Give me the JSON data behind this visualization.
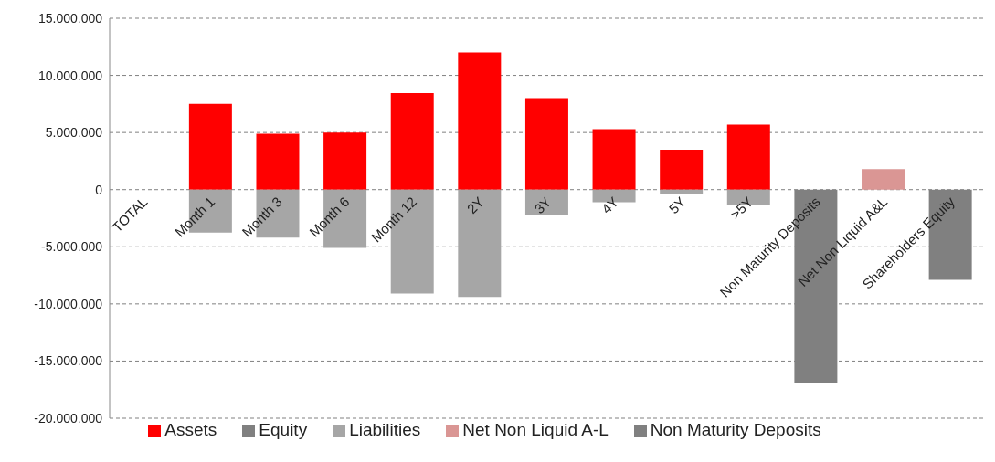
{
  "chart_data": {
    "type": "bar",
    "stacked": true,
    "categories": [
      "TOTAL",
      "Month 1",
      "Month 3",
      "Month 6",
      "Month 12",
      "2Y",
      "3Y",
      "4Y",
      "5Y",
      ">5Y",
      "Non Maturity Deposits",
      "Net Non Liquid A&L",
      "Shareholders Equity"
    ],
    "series": [
      {
        "name": "Assets",
        "color": "#ff0000",
        "values": [
          null,
          7500000,
          4900000,
          5000000,
          8450000,
          12000000,
          8000000,
          5300000,
          3500000,
          5700000,
          null,
          null,
          null
        ]
      },
      {
        "name": "Liabilities",
        "color": "#a6a6a6",
        "values": [
          null,
          -3750000,
          -4200000,
          -5100000,
          -9100000,
          -9400000,
          -2200000,
          -1100000,
          -400000,
          -1300000,
          null,
          null,
          null
        ]
      },
      {
        "name": "Net Non Liquid A-L",
        "color": "#da9694",
        "values": [
          null,
          null,
          null,
          null,
          null,
          null,
          null,
          null,
          null,
          null,
          null,
          1800000,
          null
        ]
      },
      {
        "name": "Non Maturity Deposits",
        "color": "#808080",
        "values": [
          null,
          null,
          null,
          null,
          null,
          null,
          null,
          null,
          null,
          null,
          -16900000,
          null,
          null
        ]
      },
      {
        "name": "Equity",
        "color": "#808080",
        "values": [
          null,
          null,
          null,
          null,
          null,
          null,
          null,
          null,
          null,
          null,
          null,
          null,
          -7900000
        ]
      }
    ],
    "ylim": [
      -20000000,
      15000000
    ],
    "yticks": [
      {
        "value": -20000000,
        "label": "-20.000.000"
      },
      {
        "value": -15000000,
        "label": "-15.000.000"
      },
      {
        "value": -10000000,
        "label": "-10.000.000"
      },
      {
        "value": -5000000,
        "label": "-5.000.000"
      },
      {
        "value": 0,
        "label": "0"
      },
      {
        "value": 5000000,
        "label": "5.000.000"
      },
      {
        "value": 10000000,
        "label": "10.000.000"
      },
      {
        "value": 15000000,
        "label": "15.000.000"
      }
    ],
    "grid": "y",
    "legend": "bottom"
  }
}
